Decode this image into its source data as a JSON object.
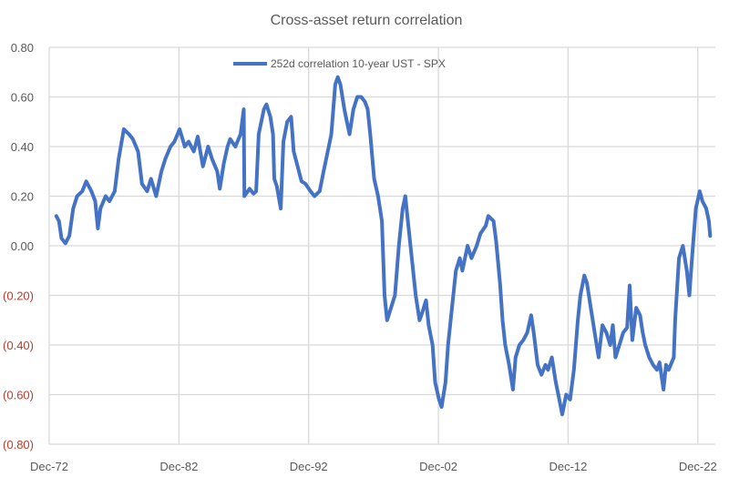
{
  "chart_data": {
    "type": "line",
    "title": "Cross-asset return correlation",
    "xlabel": "",
    "ylabel": "",
    "ylim": [
      -0.8,
      0.8
    ],
    "xlim": [
      1972.95,
      2024.3
    ],
    "grid": true,
    "legend_position": "top-center",
    "y_ticks": [
      {
        "value": 0.8,
        "label": "0.80"
      },
      {
        "value": 0.6,
        "label": "0.60"
      },
      {
        "value": 0.4,
        "label": "0.40"
      },
      {
        "value": 0.2,
        "label": "0.20"
      },
      {
        "value": 0.0,
        "label": "0.00"
      },
      {
        "value": -0.2,
        "label": "(0.20)"
      },
      {
        "value": -0.4,
        "label": "(0.40)"
      },
      {
        "value": -0.6,
        "label": "(0.60)"
      },
      {
        "value": -0.8,
        "label": "(0.80)"
      }
    ],
    "x_ticks": [
      {
        "value": 1972.95,
        "label": "Dec-72"
      },
      {
        "value": 1982.95,
        "label": "Dec-82"
      },
      {
        "value": 1992.95,
        "label": "Dec-92"
      },
      {
        "value": 2002.95,
        "label": "Dec-02"
      },
      {
        "value": 2012.95,
        "label": "Dec-12"
      },
      {
        "value": 2022.95,
        "label": "Dec-22"
      }
    ],
    "colors": {
      "series": "#4472c4",
      "grid": "#d9d9d9",
      "negative_label": "#c0392b",
      "text": "#595959"
    },
    "series": [
      {
        "name": "252d correlation 10-year UST - SPX",
        "points": [
          [
            1973.5,
            0.12
          ],
          [
            1973.7,
            0.1
          ],
          [
            1973.9,
            0.03
          ],
          [
            1974.2,
            0.01
          ],
          [
            1974.5,
            0.04
          ],
          [
            1974.8,
            0.15
          ],
          [
            1975.1,
            0.2
          ],
          [
            1975.5,
            0.22
          ],
          [
            1975.8,
            0.26
          ],
          [
            1976.2,
            0.22
          ],
          [
            1976.5,
            0.18
          ],
          [
            1976.7,
            0.07
          ],
          [
            1976.9,
            0.15
          ],
          [
            1977.3,
            0.2
          ],
          [
            1977.6,
            0.18
          ],
          [
            1978.0,
            0.22
          ],
          [
            1978.3,
            0.35
          ],
          [
            1978.7,
            0.47
          ],
          [
            1979.1,
            0.45
          ],
          [
            1979.4,
            0.43
          ],
          [
            1979.8,
            0.38
          ],
          [
            1980.1,
            0.25
          ],
          [
            1980.5,
            0.22
          ],
          [
            1980.8,
            0.27
          ],
          [
            1981.2,
            0.2
          ],
          [
            1981.6,
            0.3
          ],
          [
            1981.9,
            0.35
          ],
          [
            1982.3,
            0.4
          ],
          [
            1982.6,
            0.42
          ],
          [
            1983.0,
            0.47
          ],
          [
            1983.4,
            0.4
          ],
          [
            1983.7,
            0.42
          ],
          [
            1984.1,
            0.38
          ],
          [
            1984.4,
            0.44
          ],
          [
            1984.8,
            0.32
          ],
          [
            1985.2,
            0.4
          ],
          [
            1985.5,
            0.35
          ],
          [
            1985.9,
            0.3
          ],
          [
            1986.1,
            0.23
          ],
          [
            1986.4,
            0.33
          ],
          [
            1986.7,
            0.4
          ],
          [
            1986.9,
            0.43
          ],
          [
            1987.3,
            0.4
          ],
          [
            1987.7,
            0.45
          ],
          [
            1987.95,
            0.55
          ],
          [
            1988.0,
            0.2
          ],
          [
            1988.4,
            0.23
          ],
          [
            1988.7,
            0.21
          ],
          [
            1988.9,
            0.22
          ],
          [
            1989.1,
            0.45
          ],
          [
            1989.5,
            0.55
          ],
          [
            1989.7,
            0.57
          ],
          [
            1990.0,
            0.52
          ],
          [
            1990.2,
            0.45
          ],
          [
            1990.3,
            0.27
          ],
          [
            1990.5,
            0.24
          ],
          [
            1990.8,
            0.15
          ],
          [
            1991.0,
            0.42
          ],
          [
            1991.3,
            0.5
          ],
          [
            1991.6,
            0.52
          ],
          [
            1991.8,
            0.38
          ],
          [
            1992.1,
            0.32
          ],
          [
            1992.4,
            0.26
          ],
          [
            1992.7,
            0.25
          ],
          [
            1993.1,
            0.22
          ],
          [
            1993.4,
            0.2
          ],
          [
            1993.8,
            0.22
          ],
          [
            1994.1,
            0.3
          ],
          [
            1994.5,
            0.4
          ],
          [
            1994.7,
            0.45
          ],
          [
            1995.0,
            0.65
          ],
          [
            1995.2,
            0.68
          ],
          [
            1995.4,
            0.65
          ],
          [
            1995.7,
            0.55
          ],
          [
            1995.9,
            0.5
          ],
          [
            1996.1,
            0.45
          ],
          [
            1996.4,
            0.55
          ],
          [
            1996.7,
            0.6
          ],
          [
            1997.0,
            0.6
          ],
          [
            1997.3,
            0.58
          ],
          [
            1997.5,
            0.55
          ],
          [
            1997.7,
            0.45
          ],
          [
            1998.0,
            0.27
          ],
          [
            1998.3,
            0.2
          ],
          [
            1998.6,
            0.1
          ],
          [
            1998.8,
            -0.2
          ],
          [
            1999.0,
            -0.3
          ],
          [
            1999.3,
            -0.25
          ],
          [
            1999.6,
            -0.2
          ],
          [
            1999.9,
            0.0
          ],
          [
            2000.2,
            0.15
          ],
          [
            2000.4,
            0.2
          ],
          [
            2000.6,
            0.1
          ],
          [
            2000.9,
            -0.05
          ],
          [
            2001.2,
            -0.2
          ],
          [
            2001.5,
            -0.3
          ],
          [
            2001.7,
            -0.27
          ],
          [
            2002.0,
            -0.22
          ],
          [
            2002.2,
            -0.32
          ],
          [
            2002.5,
            -0.4
          ],
          [
            2002.7,
            -0.55
          ],
          [
            2003.0,
            -0.62
          ],
          [
            2003.2,
            -0.65
          ],
          [
            2003.5,
            -0.55
          ],
          [
            2003.7,
            -0.4
          ],
          [
            2004.0,
            -0.25
          ],
          [
            2004.3,
            -0.1
          ],
          [
            2004.6,
            -0.05
          ],
          [
            2004.8,
            -0.1
          ],
          [
            2005.2,
            0.0
          ],
          [
            2005.5,
            -0.05
          ],
          [
            2005.9,
            0.0
          ],
          [
            2006.2,
            0.05
          ],
          [
            2006.6,
            0.08
          ],
          [
            2006.8,
            0.12
          ],
          [
            2007.2,
            0.1
          ],
          [
            2007.4,
            0.02
          ],
          [
            2007.7,
            -0.15
          ],
          [
            2007.9,
            -0.3
          ],
          [
            2008.1,
            -0.4
          ],
          [
            2008.4,
            -0.48
          ],
          [
            2008.7,
            -0.58
          ],
          [
            2008.9,
            -0.45
          ],
          [
            2009.2,
            -0.4
          ],
          [
            2009.5,
            -0.38
          ],
          [
            2009.8,
            -0.35
          ],
          [
            2010.1,
            -0.28
          ],
          [
            2010.3,
            -0.35
          ],
          [
            2010.6,
            -0.48
          ],
          [
            2010.9,
            -0.52
          ],
          [
            2011.2,
            -0.48
          ],
          [
            2011.4,
            -0.5
          ],
          [
            2011.7,
            -0.45
          ],
          [
            2012.0,
            -0.55
          ],
          [
            2012.2,
            -0.6
          ],
          [
            2012.5,
            -0.68
          ],
          [
            2012.8,
            -0.6
          ],
          [
            2013.1,
            -0.62
          ],
          [
            2013.4,
            -0.5
          ],
          [
            2013.7,
            -0.3
          ],
          [
            2013.9,
            -0.2
          ],
          [
            2014.2,
            -0.12
          ],
          [
            2014.4,
            -0.15
          ],
          [
            2014.7,
            -0.25
          ],
          [
            2015.0,
            -0.35
          ],
          [
            2015.3,
            -0.45
          ],
          [
            2015.6,
            -0.32
          ],
          [
            2015.9,
            -0.35
          ],
          [
            2016.2,
            -0.4
          ],
          [
            2016.4,
            -0.32
          ],
          [
            2016.6,
            -0.45
          ],
          [
            2016.9,
            -0.4
          ],
          [
            2017.2,
            -0.35
          ],
          [
            2017.5,
            -0.33
          ],
          [
            2017.7,
            -0.16
          ],
          [
            2017.9,
            -0.38
          ],
          [
            2018.2,
            -0.25
          ],
          [
            2018.5,
            -0.28
          ],
          [
            2018.7,
            -0.35
          ],
          [
            2018.9,
            -0.4
          ],
          [
            2019.2,
            -0.45
          ],
          [
            2019.5,
            -0.48
          ],
          [
            2019.8,
            -0.5
          ],
          [
            2020.0,
            -0.47
          ],
          [
            2020.3,
            -0.58
          ],
          [
            2020.5,
            -0.48
          ],
          [
            2020.7,
            -0.5
          ],
          [
            2021.1,
            -0.45
          ],
          [
            2021.2,
            -0.3
          ],
          [
            2021.5,
            -0.05
          ],
          [
            2021.8,
            0.0
          ],
          [
            2022.1,
            -0.1
          ],
          [
            2022.3,
            -0.2
          ],
          [
            2022.5,
            -0.05
          ],
          [
            2022.8,
            0.15
          ],
          [
            2023.1,
            0.22
          ],
          [
            2023.3,
            0.18
          ],
          [
            2023.6,
            0.15
          ],
          [
            2023.8,
            0.1
          ],
          [
            2023.9,
            0.04
          ]
        ]
      }
    ]
  }
}
